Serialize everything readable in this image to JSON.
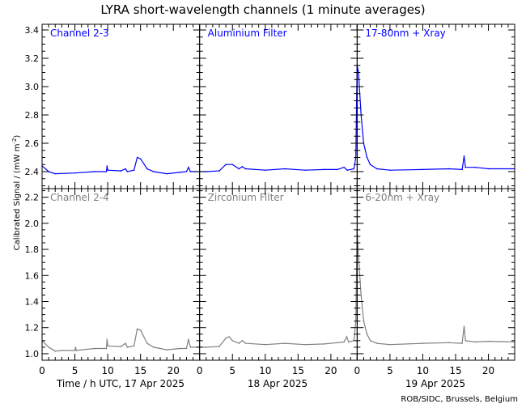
{
  "chart_data": {
    "type": "line",
    "title": "LYRA short-wavelength channels (1 minute averages)",
    "ylabel": "Calibrated Signal / (mW m",
    "ylabel_sup": "-2",
    "ylabel_close": ")",
    "xlabel": "Time / h UTC, 17 Apr 2025",
    "day_labels": [
      "",
      "18 Apr 2025",
      "19 Apr 2025"
    ],
    "credit": "ROB/SIDC, Brussels, Belgium",
    "x_tick_labels": [
      "0",
      "5",
      "10",
      "15",
      "20"
    ],
    "hours_per_day": 24,
    "grid": false,
    "rows": [
      {
        "color": "#0000ff",
        "ylim": [
          2.28,
          3.44
        ],
        "yticks": [
          2.4,
          2.6,
          2.8,
          3.0,
          3.2,
          3.4
        ],
        "ytick_labels": [
          "2.4",
          "2.6",
          "2.8",
          "3.0",
          "3.2",
          "3.4"
        ],
        "panel_labels": [
          "Channel 2-3",
          "Aluminium Filter",
          "17-80nm + Xray"
        ],
        "x": [
          0,
          1,
          2,
          5,
          8,
          9.8,
          9.9,
          10,
          12,
          12.7,
          13,
          14,
          14.5,
          15,
          16,
          17,
          19,
          21,
          22,
          22.3,
          22.6,
          24,
          25,
          27,
          28,
          29,
          30,
          30.5,
          31,
          34,
          37,
          40,
          43,
          45,
          46,
          46.5,
          47.5,
          47.8,
          48,
          48.2,
          48.6,
          49,
          49.5,
          50,
          51,
          53,
          58,
          62,
          64,
          64.3,
          64.5,
          66,
          68,
          72
        ],
        "y": [
          2.44,
          2.4,
          2.385,
          2.39,
          2.4,
          2.4,
          2.44,
          2.41,
          2.405,
          2.42,
          2.4,
          2.41,
          2.5,
          2.49,
          2.42,
          2.4,
          2.385,
          2.395,
          2.4,
          2.43,
          2.4,
          2.4,
          2.4,
          2.405,
          2.45,
          2.45,
          2.42,
          2.435,
          2.42,
          2.41,
          2.42,
          2.41,
          2.415,
          2.415,
          2.43,
          2.41,
          2.42,
          2.5,
          3.15,
          3.1,
          2.8,
          2.6,
          2.5,
          2.45,
          2.42,
          2.41,
          2.415,
          2.42,
          2.415,
          2.51,
          2.43,
          2.43,
          2.42,
          2.42
        ]
      },
      {
        "color": "#808080",
        "ylim": [
          0.95,
          2.266
        ],
        "yticks": [
          1.0,
          1.2,
          1.4,
          1.6,
          1.8,
          2.0,
          2.2
        ],
        "ytick_labels": [
          "1.0",
          "1.2",
          "1.4",
          "1.6",
          "1.8",
          "2.0",
          "2.2"
        ],
        "panel_labels": [
          "Channel 2-4",
          "Zirconium Filter",
          "6-20nm + Xray"
        ],
        "x": [
          0,
          1,
          2,
          3,
          5,
          5.1,
          5.2,
          8,
          9.8,
          9.9,
          10,
          12,
          12.7,
          13,
          14,
          14.5,
          15,
          16,
          17,
          19,
          21,
          22,
          22.3,
          22.6,
          24,
          25,
          27,
          28,
          28.5,
          29,
          30,
          30.5,
          31,
          34,
          37,
          40,
          43,
          45,
          46,
          46.4,
          46.7,
          47.5,
          47.8,
          48,
          48.2,
          48.6,
          49,
          49.5,
          50,
          51,
          53,
          58,
          62,
          64,
          64.3,
          64.5,
          66,
          68,
          72
        ],
        "y": [
          1.1,
          1.05,
          1.02,
          1.025,
          1.025,
          1.05,
          1.025,
          1.04,
          1.04,
          1.11,
          1.06,
          1.055,
          1.08,
          1.05,
          1.06,
          1.19,
          1.18,
          1.08,
          1.05,
          1.03,
          1.04,
          1.04,
          1.11,
          1.05,
          1.05,
          1.05,
          1.055,
          1.12,
          1.13,
          1.1,
          1.08,
          1.1,
          1.08,
          1.07,
          1.08,
          1.07,
          1.075,
          1.085,
          1.09,
          1.13,
          1.09,
          1.1,
          1.25,
          1.95,
          1.75,
          1.45,
          1.25,
          1.15,
          1.1,
          1.08,
          1.07,
          1.08,
          1.085,
          1.08,
          1.21,
          1.1,
          1.09,
          1.095,
          1.09
        ]
      }
    ]
  }
}
